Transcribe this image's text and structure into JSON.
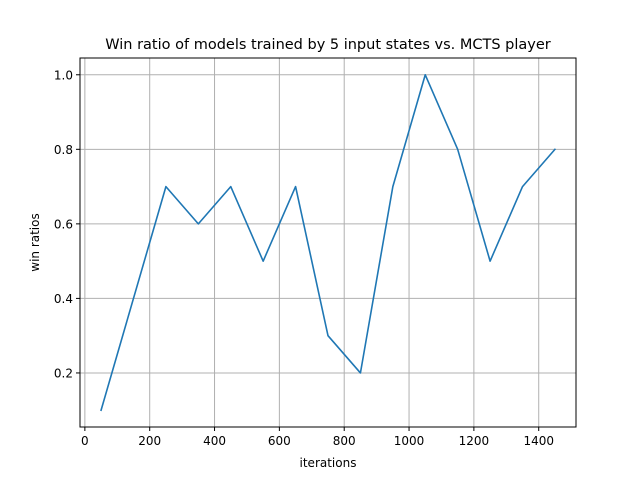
{
  "chart_data": {
    "type": "line",
    "title": "Win ratio of models trained by 5 input states vs. MCTS player",
    "xlabel": "iterations",
    "ylabel": "win ratios",
    "xlim": [
      -15,
      1515
    ],
    "ylim": [
      0.055,
      1.045
    ],
    "xticks": [
      0,
      200,
      400,
      600,
      800,
      1000,
      1200,
      1400
    ],
    "yticks": [
      0.2,
      0.4,
      0.6,
      0.8,
      1.0
    ],
    "xtick_labels": [
      "0",
      "200",
      "400",
      "600",
      "800",
      "1000",
      "1200",
      "1400"
    ],
    "ytick_labels": [
      "0.2",
      "0.4",
      "0.6",
      "0.8",
      "1.0"
    ],
    "grid": true,
    "series": [
      {
        "color": "#1f77b4",
        "x": [
          50,
          250,
          350,
          450,
          550,
          650,
          750,
          850,
          950,
          1050,
          1150,
          1250,
          1350,
          1450
        ],
        "y": [
          0.1,
          0.7,
          0.6,
          0.7,
          0.5,
          0.7,
          0.3,
          0.2,
          0.7,
          1.0,
          0.8,
          0.5,
          0.7,
          0.8
        ]
      }
    ],
    "colors": {
      "grid": "#b0b0b0",
      "axes": "#000000",
      "line": "#1f77b4"
    }
  }
}
